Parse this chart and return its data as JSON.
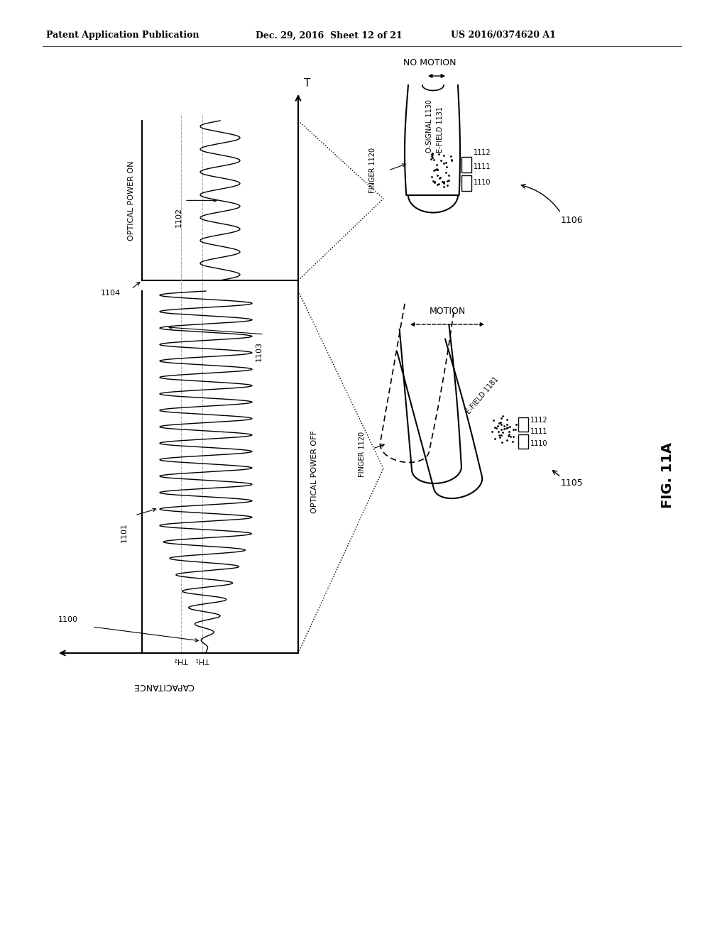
{
  "title_left": "Patent Application Publication",
  "title_mid": "Dec. 29, 2016  Sheet 12 of 21",
  "title_right": "US 2016/0374620 A1",
  "fig_label": "FIG. 11A",
  "bg_color": "#ffffff",
  "line_color": "#000000",
  "gray_color": "#aaaaaa",
  "labels": {
    "optical_power_on": "OPTICAL POWER ON",
    "optical_power_off": "OPTICAL POWER OFF",
    "capacitance": "CAPACITANCE",
    "T": "T",
    "TH1": "TH₁",
    "TH2": "TH₂",
    "no_motion": "NO MOTION",
    "motion": "MOTION",
    "finger_1120": "FINGER 1120",
    "o_signal_1130": "O-SIGNAL 1130",
    "e_field_1131": "E-FIELD 1131",
    "e_field_1181": "E-FIELD 1181",
    "ref_1100": "1100",
    "ref_1101": "1101",
    "ref_1102": "1102",
    "ref_1103": "1103",
    "ref_1104": "1104",
    "ref_1105": "1105",
    "ref_1106": "1106",
    "ref_1110": "1110",
    "ref_1111": "1111",
    "ref_1112": "1112"
  }
}
